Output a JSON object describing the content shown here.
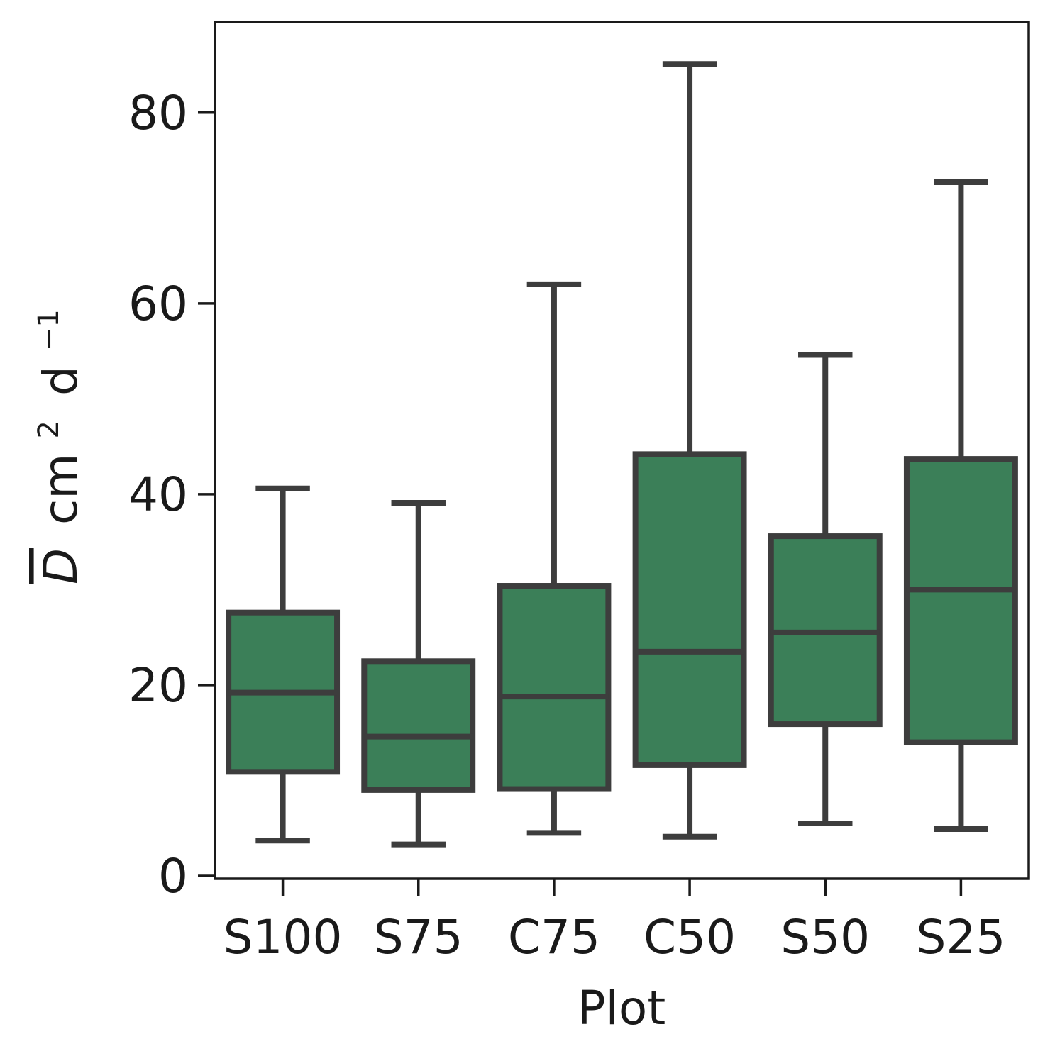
{
  "chart_data": {
    "type": "boxplot",
    "title": "",
    "xlabel": "Plot",
    "ylabel": {
      "symbol": "D",
      "unit": "cm",
      "unit_exp": "2",
      "time": "d",
      "time_exp": "−1"
    },
    "ylim": [
      -0.3,
      89.5
    ],
    "yticks": [
      0,
      20,
      40,
      60,
      80
    ],
    "ytick_labels": [
      "0",
      "20",
      "40",
      "60",
      "80"
    ],
    "categories": [
      "S100",
      "S75",
      "C75",
      "C50",
      "S50",
      "S25"
    ],
    "boxes": [
      {
        "name": "S100",
        "whislo": 3.7,
        "q1": 10.9,
        "med": 19.2,
        "q3": 27.6,
        "whishi": 40.6
      },
      {
        "name": "S75",
        "whislo": 3.3,
        "q1": 9.0,
        "med": 14.6,
        "q3": 22.5,
        "whishi": 39.1
      },
      {
        "name": "C75",
        "whislo": 4.5,
        "q1": 9.1,
        "med": 18.8,
        "q3": 30.4,
        "whishi": 62.0
      },
      {
        "name": "C50",
        "whislo": 4.1,
        "q1": 11.6,
        "med": 23.5,
        "q3": 44.2,
        "whishi": 85.1
      },
      {
        "name": "S50",
        "whislo": 5.5,
        "q1": 15.9,
        "med": 25.5,
        "q3": 35.6,
        "whishi": 54.6
      },
      {
        "name": "S25",
        "whislo": 4.9,
        "q1": 14.0,
        "med": 30.0,
        "q3": 43.7,
        "whishi": 72.7
      }
    ],
    "grid": false,
    "colors": {
      "box_fill": "#3b7f58",
      "line": "#3d3d3d",
      "axis": "#1a1a1a"
    }
  }
}
